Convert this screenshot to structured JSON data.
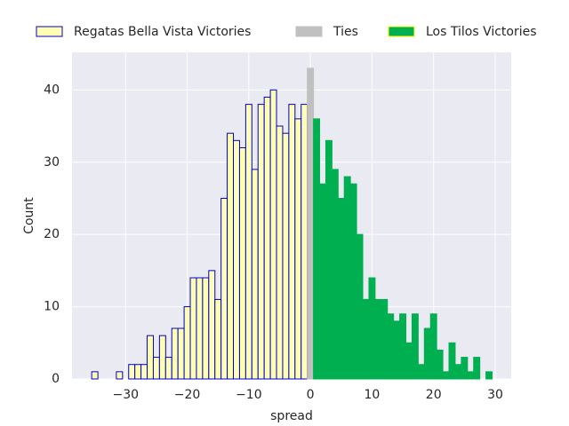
{
  "chart_data": {
    "type": "histogram",
    "x_label": "spread",
    "y_label": "Count",
    "xlim": [
      -38.7,
      32.6
    ],
    "ylim": [
      0,
      45.2
    ],
    "xticks": [
      {
        "value": -30,
        "label": "−30"
      },
      {
        "value": -20,
        "label": "−20"
      },
      {
        "value": -10,
        "label": "−10"
      },
      0,
      10,
      20,
      30
    ],
    "yticks": [
      0,
      10,
      20,
      30,
      40
    ],
    "grid": true,
    "legend": "top",
    "series": [
      {
        "name": "Regatas Bella Vista Victories",
        "color": "#ffffb3",
        "edgecolor": "#0000cc",
        "bins": [
          -35.5,
          -34.5,
          -33.5,
          -32.5,
          -31.5,
          -30.5,
          -29.5,
          -28.5,
          -27.5,
          -26.5,
          -25.5,
          -24.5,
          -23.5,
          -22.5,
          -21.5,
          -20.5,
          -19.5,
          -18.5,
          -17.5,
          -16.5,
          -15.5,
          -14.5,
          -13.5,
          -12.5,
          -11.5,
          -10.5,
          -9.5,
          -8.5,
          -7.5,
          -6.5,
          -5.5,
          -4.5,
          -3.5,
          -2.5,
          -1.5,
          -0.5
        ],
        "counts": [
          1,
          0,
          0,
          0,
          1,
          0,
          2,
          2,
          2,
          6,
          3,
          6,
          3,
          7,
          7,
          10,
          14,
          14,
          14,
          15,
          11,
          25,
          34,
          33,
          32,
          38,
          29,
          38,
          39,
          40,
          35,
          34,
          38,
          36,
          38
        ]
      },
      {
        "name": "Ties",
        "color": "#c0c0c0",
        "edgecolor": "#c0c0c0",
        "bins": [
          -0.5,
          0.5
        ],
        "counts": [
          43
        ]
      },
      {
        "name": "Los Tilos Victories",
        "color": "#00b050",
        "edgecolor": "#ffff00",
        "bins": [
          0.5,
          1.5,
          2.5,
          3.5,
          4.5,
          5.5,
          6.5,
          7.5,
          8.5,
          9.5,
          10.5,
          11.5,
          12.5,
          13.5,
          14.5,
          15.5,
          16.5,
          17.5,
          18.5,
          19.5,
          20.5,
          21.5,
          22.5,
          23.5,
          24.5,
          25.5,
          26.5,
          27.5,
          28.5,
          29.5
        ],
        "counts": [
          36,
          27,
          33,
          29,
          25,
          28,
          27,
          20,
          11,
          14,
          11,
          11,
          9,
          8,
          9,
          5,
          9,
          2,
          7,
          9,
          4,
          1,
          5,
          2,
          3,
          1,
          3,
          0,
          1
        ]
      }
    ]
  }
}
